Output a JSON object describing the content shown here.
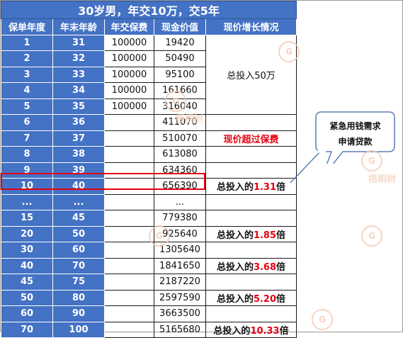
{
  "title": "30岁男，年交10万，交5年",
  "headers": [
    "保单年度",
    "年末年龄",
    "年交保费",
    "现金价值",
    "现价增长情况"
  ],
  "rows": [
    {
      "year": "1",
      "age": "31",
      "premium": "100000",
      "cash": "19420"
    },
    {
      "year": "2",
      "age": "32",
      "premium": "100000",
      "cash": "50490"
    },
    {
      "year": "3",
      "age": "33",
      "premium": "100000",
      "cash": "95100"
    },
    {
      "year": "4",
      "age": "34",
      "premium": "100000",
      "cash": "161660"
    },
    {
      "year": "5",
      "age": "35",
      "premium": "100000",
      "cash": "316040"
    },
    {
      "year": "6",
      "age": "36",
      "premium": "",
      "cash": "411070"
    },
    {
      "year": "7",
      "age": "37",
      "premium": "",
      "cash": "510070"
    },
    {
      "year": "8",
      "age": "38",
      "premium": "",
      "cash": "613080"
    },
    {
      "year": "9",
      "age": "39",
      "premium": "",
      "cash": "634360"
    },
    {
      "year": "10",
      "age": "40",
      "premium": "",
      "cash": "656390"
    },
    {
      "year": "...",
      "age": "...",
      "premium": "",
      "cash": "..."
    },
    {
      "year": "15",
      "age": "45",
      "premium": "",
      "cash": "779380"
    },
    {
      "year": "20",
      "age": "50",
      "premium": "",
      "cash": "925640"
    },
    {
      "year": "30",
      "age": "60",
      "premium": "",
      "cash": "1305640"
    },
    {
      "year": "40",
      "age": "70",
      "premium": "",
      "cash": "1841650"
    },
    {
      "year": "45",
      "age": "75",
      "premium": "",
      "cash": "2187220"
    },
    {
      "year": "50",
      "age": "80",
      "premium": "",
      "cash": "2597590"
    },
    {
      "year": "60",
      "age": "90",
      "premium": "",
      "cash": "3663500"
    },
    {
      "year": "70",
      "age": "100",
      "premium": "",
      "cash": "5165680"
    }
  ],
  "notes": {
    "total_invest": "总投入50万",
    "exceed": "现价超过保费",
    "prefix": "总投入的",
    "suffix": "倍",
    "m10": "1.31",
    "m20": "1.85",
    "m40": "3.68",
    "m50": "5.20",
    "m70": "10.33"
  },
  "callout": {
    "line1": "紧急用钱需求",
    "line2": "申请贷款"
  },
  "watermark": {
    "logo_char": "G",
    "text": "梧桐树"
  },
  "colors": {
    "header_blue": "#4472c4",
    "highlight_red": "#e60012",
    "watermark": "#f3c9b4"
  }
}
